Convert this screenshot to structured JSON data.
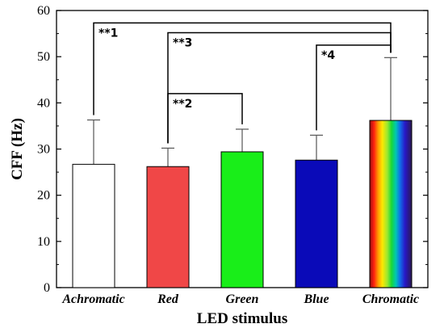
{
  "chart_data": {
    "type": "bar",
    "title": "",
    "xlabel": "LED stimulus",
    "ylabel": "CFF (Hz)",
    "ylim": [
      0,
      60
    ],
    "yticks": [
      "0",
      "10",
      "20",
      "30",
      "40",
      "50",
      "60"
    ],
    "categories": [
      "Achromatic",
      "Red",
      "Green",
      "Blue",
      "Chromatic"
    ],
    "values": [
      26.7,
      26.2,
      29.4,
      27.6,
      36.2
    ],
    "errors": [
      9.6,
      4.0,
      4.9,
      5.4,
      13.6
    ],
    "bar_colors": [
      "#ffffff",
      "#f04747",
      "#19ee19",
      "#0a0ab8",
      "rainbow-gradient"
    ],
    "grid": false,
    "legend": "none",
    "significance": [
      {
        "from": "Achromatic",
        "to": "Chromatic",
        "label": "**1",
        "y": 57.3
      },
      {
        "from": "Red",
        "to": "Chromatic",
        "label": "**3",
        "y": 55.2
      },
      {
        "from": "Red",
        "to": "Green",
        "label": "**2",
        "y": 42.0
      },
      {
        "from": "Blue",
        "to": "Chromatic",
        "label": "*4",
        "y": 52.5
      }
    ]
  }
}
